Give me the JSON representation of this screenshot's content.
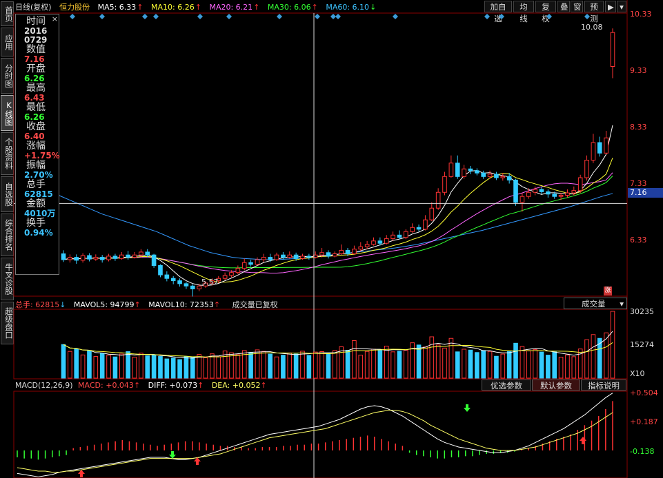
{
  "sidebar": {
    "tabs": [
      {
        "label": "首页",
        "active": false
      },
      {
        "label": "应用",
        "active": false
      },
      {
        "label": "分时图",
        "active": false
      },
      {
        "label": "K线图",
        "active": true
      },
      {
        "label": "个股资料",
        "active": false
      },
      {
        "label": "自选股",
        "active": false
      },
      {
        "label": "综合排名",
        "active": false
      },
      {
        "label": "牛叉诊股",
        "active": false
      },
      {
        "label": "超级盘口",
        "active": false
      }
    ]
  },
  "header": {
    "period": "日线(复权)",
    "stock_name": "恒力股份",
    "ma5": "MA5: 6.33",
    "ma10": "MA10: 6.26",
    "ma20": "MA20: 6.21",
    "ma30": "MA30: 6.06",
    "ma60": "MA60: 6.10",
    "ma_colors": {
      "ma5": "#ffffff",
      "ma10": "#ffff00",
      "ma20": "#ff66ff",
      "ma30": "#33ff33",
      "ma60": "#3399ff"
    }
  },
  "toolbar": {
    "add_favorite": "加自选",
    "ma_line": "均线",
    "restore_rights": "复权",
    "overlay": "叠",
    "window": "窗",
    "forecast": "预测"
  },
  "data_window": {
    "close_icon": "×",
    "items": [
      {
        "label": "时间",
        "value": "2016\n0729",
        "color": "white"
      },
      {
        "label": "数值",
        "value": "7.16",
        "color": "red"
      },
      {
        "label": "开盘",
        "value": "6.26",
        "color": "green"
      },
      {
        "label": "最高",
        "value": "6.43",
        "color": "red"
      },
      {
        "label": "最低",
        "value": "6.26",
        "color": "green"
      },
      {
        "label": "收盘",
        "value": "6.40",
        "color": "red"
      },
      {
        "label": "涨幅",
        "value": "+1.75%",
        "color": "red"
      },
      {
        "label": "振幅",
        "value": "2.70%",
        "color": "cyan"
      },
      {
        "label": "总手",
        "value": "62815",
        "color": "cyan"
      },
      {
        "label": "金额",
        "value": "4010万",
        "color": "cyan"
      },
      {
        "label": "换手",
        "value": "0.94%",
        "color": "cyan"
      }
    ]
  },
  "price_axis": {
    "ticks": [
      "10.33",
      "9.33",
      "8.33",
      "7.33",
      "6.33"
    ],
    "crosshair_value": "7.16",
    "max_label": "10.08",
    "min_label": "5.57",
    "limit_badge": "涨"
  },
  "volume_panel": {
    "total_label": "总手: 62815",
    "mavol5": "MAVOL5: 94799",
    "mavol10": "MAVOL10: 72353",
    "note": "成交量已复权",
    "selector": "成交量",
    "axis_ticks": [
      "30235",
      "15274"
    ],
    "unit": "X10"
  },
  "macd_panel": {
    "title": "MACD(12,26,9)",
    "macd": "MACD: +0.043",
    "diff": "DIFF: +0.073",
    "dea": "DEA: +0.052",
    "buttons": [
      "优选参数",
      "默认参数",
      "指标说明"
    ],
    "axis_ticks": [
      "+0.504",
      "+0.187",
      "-0.138"
    ]
  },
  "chart_data": {
    "type": "candlestick",
    "price_range": [
      5.6,
      10.4
    ],
    "candles": [
      [
        6.3,
        6.2,
        6.36,
        6.16
      ],
      [
        6.2,
        6.24,
        6.29,
        6.15
      ],
      [
        6.24,
        6.19,
        6.29,
        6.13
      ],
      [
        6.19,
        6.27,
        6.31,
        6.15
      ],
      [
        6.27,
        6.21,
        6.31,
        6.17
      ],
      [
        6.21,
        6.24,
        6.29,
        6.18
      ],
      [
        6.24,
        6.2,
        6.28,
        6.15
      ],
      [
        6.2,
        6.26,
        6.3,
        6.17
      ],
      [
        6.26,
        6.22,
        6.3,
        6.18
      ],
      [
        6.22,
        6.28,
        6.33,
        6.2
      ],
      [
        6.28,
        6.24,
        6.35,
        6.2
      ],
      [
        6.24,
        6.28,
        6.33,
        6.22
      ],
      [
        6.28,
        6.33,
        6.38,
        6.24
      ],
      [
        6.33,
        6.28,
        6.38,
        6.24
      ],
      [
        6.28,
        6.1,
        6.3,
        6.06
      ],
      [
        6.1,
        5.94,
        6.12,
        5.9
      ],
      [
        5.94,
        5.88,
        6.0,
        5.83
      ],
      [
        5.88,
        5.84,
        5.92,
        5.78
      ],
      [
        5.84,
        5.79,
        5.88,
        5.74
      ],
      [
        5.79,
        5.75,
        5.82,
        5.7
      ],
      [
        5.75,
        5.7,
        5.78,
        5.57
      ],
      [
        5.7,
        5.75,
        5.79,
        5.66
      ],
      [
        5.75,
        5.8,
        5.83,
        5.72
      ],
      [
        5.8,
        5.84,
        5.88,
        5.76
      ],
      [
        5.84,
        5.88,
        5.92,
        5.8
      ],
      [
        5.88,
        5.93,
        5.98,
        5.85
      ],
      [
        5.93,
        5.98,
        6.02,
        5.9
      ],
      [
        5.98,
        6.05,
        6.1,
        5.95
      ],
      [
        6.05,
        6.15,
        6.22,
        6.02
      ],
      [
        6.15,
        6.12,
        6.2,
        6.08
      ],
      [
        6.12,
        6.2,
        6.24,
        6.1
      ],
      [
        6.2,
        6.24,
        6.3,
        6.16
      ],
      [
        6.24,
        6.2,
        6.3,
        6.16
      ],
      [
        6.2,
        6.28,
        6.32,
        6.18
      ],
      [
        6.28,
        6.24,
        6.33,
        6.2
      ],
      [
        6.24,
        6.28,
        6.34,
        6.22
      ],
      [
        6.28,
        6.22,
        6.32,
        6.18
      ],
      [
        6.22,
        6.26,
        6.3,
        6.2
      ],
      [
        6.26,
        6.24,
        6.3,
        6.2
      ],
      [
        6.24,
        6.28,
        6.34,
        6.22
      ],
      [
        6.28,
        6.32,
        6.4,
        6.24
      ],
      [
        6.32,
        6.26,
        6.36,
        6.22
      ],
      [
        6.26,
        6.3,
        6.34,
        6.24
      ],
      [
        6.3,
        6.36,
        6.46,
        6.28
      ],
      [
        6.36,
        6.3,
        6.4,
        6.26
      ],
      [
        6.3,
        6.38,
        6.44,
        6.28
      ],
      [
        6.38,
        6.42,
        6.5,
        6.34
      ],
      [
        6.42,
        6.46,
        6.52,
        6.38
      ],
      [
        6.46,
        6.52,
        6.58,
        6.44
      ],
      [
        6.52,
        6.48,
        6.58,
        6.44
      ],
      [
        6.48,
        6.56,
        6.62,
        6.46
      ],
      [
        6.56,
        6.62,
        6.68,
        6.52
      ],
      [
        6.62,
        6.58,
        6.7,
        6.55
      ],
      [
        6.58,
        6.68,
        6.72,
        6.55
      ],
      [
        6.68,
        6.75,
        6.82,
        6.66
      ],
      [
        6.75,
        6.72,
        6.8,
        6.68
      ],
      [
        6.72,
        6.88,
        6.96,
        6.7
      ],
      [
        6.88,
        7.08,
        7.18,
        6.86
      ],
      [
        7.08,
        7.35,
        7.42,
        7.05
      ],
      [
        7.35,
        7.62,
        7.7,
        7.3
      ],
      [
        7.62,
        7.85,
        7.98,
        7.6
      ],
      [
        7.85,
        7.62,
        7.98,
        7.58
      ],
      [
        7.62,
        7.75,
        7.82,
        7.58
      ],
      [
        7.75,
        7.72,
        7.8,
        7.66
      ],
      [
        7.72,
        7.68,
        7.76,
        7.64
      ],
      [
        7.68,
        7.62,
        7.72,
        7.58
      ],
      [
        7.62,
        7.66,
        7.72,
        7.58
      ],
      [
        7.66,
        7.6,
        7.7,
        7.56
      ],
      [
        7.6,
        7.62,
        7.68,
        7.55
      ],
      [
        7.62,
        7.56,
        7.68,
        7.5
      ],
      [
        7.56,
        7.18,
        7.58,
        7.12
      ],
      [
        7.18,
        7.28,
        7.34,
        7.02
      ],
      [
        7.28,
        7.35,
        7.42,
        7.24
      ],
      [
        7.35,
        7.4,
        7.45,
        7.3
      ],
      [
        7.4,
        7.36,
        7.44,
        7.32
      ],
      [
        7.36,
        7.32,
        7.4,
        7.26
      ],
      [
        7.32,
        7.28,
        7.36,
        7.24
      ],
      [
        7.28,
        7.3,
        7.34,
        7.22
      ],
      [
        7.3,
        7.34,
        7.4,
        7.26
      ],
      [
        7.34,
        7.38,
        7.45,
        7.3
      ],
      [
        7.38,
        7.6,
        7.65,
        7.34
      ],
      [
        7.6,
        7.9,
        7.98,
        7.55
      ],
      [
        7.9,
        8.2,
        8.35,
        7.85
      ],
      [
        8.2,
        8.02,
        8.3,
        7.96
      ],
      [
        8.02,
        8.28,
        8.4,
        8.0
      ],
      [
        9.5,
        10.08,
        10.15,
        9.3
      ]
    ],
    "volume": [
      15200,
      12100,
      13100,
      10500,
      12300,
      9800,
      11200,
      10400,
      9600,
      10900,
      12000,
      9500,
      11300,
      10100,
      10600,
      9800,
      8700,
      9100,
      8400,
      9700,
      9500,
      10700,
      9200,
      11000,
      9700,
      12300,
      11500,
      10600,
      12500,
      11600,
      12800,
      12100,
      10900,
      9600,
      10400,
      11400,
      10900,
      12200,
      10300,
      11800,
      12000,
      11100,
      12500,
      14200,
      12600,
      17000,
      10400,
      12100,
      13100,
      12700,
      14500,
      11900,
      12200,
      12600,
      16000,
      15000,
      14100,
      18700,
      15000,
      13600,
      18000,
      11900,
      13100,
      12700,
      11600,
      12500,
      12100,
      9900,
      10900,
      12000,
      15800,
      14300,
      12300,
      12900,
      11800,
      10400,
      11900,
      9500,
      10500,
      9700,
      13200,
      17400,
      19700,
      18000,
      20500,
      30235
    ],
    "macd": [
      -0.06,
      -0.07,
      -0.07,
      -0.08,
      -0.07,
      -0.06,
      -0.05,
      -0.04,
      0.02,
      0.03,
      0.04,
      0.05,
      0.06,
      0.07,
      0.08,
      0.09,
      0.08,
      0.07,
      0.06,
      0.05,
      0.04,
      0.05,
      0.06,
      0.07,
      0.08,
      0.08,
      0.07,
      0.06,
      0.05,
      0.04,
      0.04,
      0.03,
      0.03,
      0.02,
      0.02,
      0.03,
      0.03,
      0.03,
      0.04,
      0.04,
      0.05,
      0.05,
      0.06,
      0.06,
      0.07,
      0.08,
      0.09,
      0.1,
      0.11,
      0.12,
      0.13,
      0.12,
      0.1,
      0.08,
      0.06,
      0.04,
      -0.02,
      -0.04,
      -0.05,
      -0.06,
      -0.07,
      -0.07,
      -0.06,
      -0.06,
      -0.05,
      -0.05,
      -0.04,
      -0.03,
      -0.03,
      -0.02,
      -0.02,
      -0.01,
      0.01,
      0.02,
      0.04,
      0.06,
      0.08,
      0.1,
      0.12,
      0.14,
      0.18,
      0.22,
      0.26,
      0.3,
      0.36,
      0.43
    ],
    "diff": [
      -0.2,
      -0.21,
      -0.22,
      -0.23,
      -0.22,
      -0.21,
      -0.19,
      -0.18,
      -0.17,
      -0.16,
      -0.15,
      -0.14,
      -0.13,
      -0.12,
      -0.11,
      -0.1,
      -0.09,
      -0.08,
      -0.07,
      -0.06,
      -0.06,
      -0.06,
      -0.07,
      -0.08,
      -0.08,
      -0.07,
      -0.06,
      -0.04,
      -0.02,
      0.0,
      0.02,
      0.04,
      0.06,
      0.08,
      0.1,
      0.12,
      0.14,
      0.15,
      0.16,
      0.17,
      0.18,
      0.19,
      0.2,
      0.21,
      0.23,
      0.25,
      0.27,
      0.3,
      0.33,
      0.36,
      0.38,
      0.39,
      0.38,
      0.36,
      0.33,
      0.3,
      0.26,
      0.22,
      0.18,
      0.14,
      0.1,
      0.07,
      0.05,
      0.03,
      0.02,
      0.01,
      0.0,
      -0.01,
      -0.02,
      -0.02,
      -0.01,
      0.0,
      0.02,
      0.04,
      0.07,
      0.1,
      0.13,
      0.16,
      0.19,
      0.23,
      0.27,
      0.31,
      0.36,
      0.41,
      0.46,
      0.5
    ],
    "dea": [
      -0.15,
      -0.16,
      -0.17,
      -0.18,
      -0.18,
      -0.19,
      -0.19,
      -0.18,
      -0.18,
      -0.17,
      -0.16,
      -0.15,
      -0.14,
      -0.13,
      -0.12,
      -0.11,
      -0.1,
      -0.09,
      -0.08,
      -0.07,
      -0.07,
      -0.07,
      -0.07,
      -0.07,
      -0.07,
      -0.07,
      -0.06,
      -0.05,
      -0.04,
      -0.03,
      -0.01,
      0.01,
      0.03,
      0.05,
      0.07,
      0.09,
      0.11,
      0.12,
      0.13,
      0.14,
      0.15,
      0.16,
      0.17,
      0.18,
      0.19,
      0.21,
      0.23,
      0.25,
      0.27,
      0.29,
      0.31,
      0.33,
      0.34,
      0.35,
      0.35,
      0.34,
      0.32,
      0.29,
      0.26,
      0.22,
      0.19,
      0.16,
      0.13,
      0.1,
      0.08,
      0.06,
      0.04,
      0.02,
      0.01,
      0.0,
      0.0,
      0.0,
      0.01,
      0.02,
      0.03,
      0.05,
      0.07,
      0.09,
      0.11,
      0.13,
      0.15,
      0.18,
      0.21,
      0.25,
      0.29,
      0.33
    ],
    "ma60_line": [
      7.3,
      7.22,
      7.14,
      7.06,
      6.98,
      6.92,
      6.86,
      6.8,
      6.74,
      6.68,
      6.6,
      6.52,
      6.44,
      6.38,
      6.32,
      6.28,
      6.24,
      6.22,
      6.21,
      6.2,
      6.2,
      6.21,
      6.22,
      6.24,
      6.26,
      6.28,
      6.3,
      6.32,
      6.34,
      6.36,
      6.38,
      6.4,
      6.43,
      6.46,
      6.5,
      6.54,
      6.58,
      6.62,
      6.66,
      6.7,
      6.75,
      6.8,
      6.85,
      6.9,
      6.95,
      7.0,
      7.05,
      7.1,
      7.16,
      7.22,
      7.28,
      7.33
    ]
  }
}
